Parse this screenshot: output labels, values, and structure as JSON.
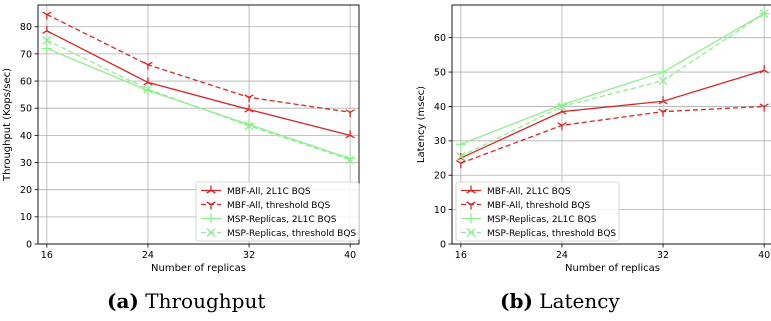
{
  "captions": [
    {
      "label": "(a)",
      "text": "Throughput"
    },
    {
      "label": "(b)",
      "text": "Latency"
    }
  ],
  "colors": {
    "mbf": "#d62728",
    "msp": "#90ee90",
    "grid": "#b0b0b0",
    "axis": "#000000"
  },
  "chart_data": [
    {
      "type": "line",
      "title": "",
      "xlabel": "Number of replicas",
      "ylabel": "Throughput (Kops/sec)",
      "x": [
        16,
        24,
        32,
        40
      ],
      "xticks": [
        16,
        24,
        32,
        40
      ],
      "yticks": [
        0,
        10,
        20,
        30,
        40,
        50,
        60,
        70,
        80
      ],
      "xlim": [
        15.3,
        40.7
      ],
      "ylim": [
        0,
        88
      ],
      "grid": true,
      "legend_position": "lower-right",
      "series": [
        {
          "name": "MBF-All, 2L1C BQS",
          "values": [
            78.5,
            59.5,
            49.5,
            40
          ],
          "color": "#d62728",
          "dash": "solid",
          "marker": "tri_up"
        },
        {
          "name": "MBF-All, threshold BQS",
          "values": [
            84.5,
            66,
            54,
            48.5
          ],
          "color": "#d62728",
          "dash": "dashed",
          "marker": "tri_down"
        },
        {
          "name": "MSP-Replicas, 2L1C BQS",
          "values": [
            72,
            56.5,
            44,
            31.5
          ],
          "color": "#90ee90",
          "dash": "solid",
          "marker": "plus"
        },
        {
          "name": "MSP-Replicas, threshold BQS",
          "values": [
            75,
            57,
            43.5,
            31
          ],
          "color": "#90ee90",
          "dash": "dashed",
          "marker": "x"
        }
      ]
    },
    {
      "type": "line",
      "title": "",
      "xlabel": "Number of replicas",
      "ylabel": "Latency (msec)",
      "x": [
        16,
        24,
        32,
        40
      ],
      "xticks": [
        16,
        24,
        32,
        40
      ],
      "yticks": [
        0,
        10,
        20,
        30,
        40,
        50,
        60
      ],
      "xlim": [
        15.3,
        40.7
      ],
      "ylim": [
        0,
        69.5
      ],
      "grid": true,
      "legend_position": "lower-left",
      "series": [
        {
          "name": "MBF-All, 2L1C BQS",
          "values": [
            25,
            38.5,
            41.5,
            50.5
          ],
          "color": "#d62728",
          "dash": "solid",
          "marker": "tri_up"
        },
        {
          "name": "MBF-All, threshold BQS",
          "values": [
            23.5,
            34.5,
            38.5,
            40
          ],
          "color": "#d62728",
          "dash": "dashed",
          "marker": "tri_down"
        },
        {
          "name": "MSP-Replicas, 2L1C BQS",
          "values": [
            29,
            40.5,
            50,
            67
          ],
          "color": "#90ee90",
          "dash": "solid",
          "marker": "plus"
        },
        {
          "name": "MSP-Replicas, threshold BQS",
          "values": [
            25.5,
            40,
            47.5,
            67
          ],
          "color": "#90ee90",
          "dash": "dashed",
          "marker": "x"
        }
      ]
    }
  ]
}
